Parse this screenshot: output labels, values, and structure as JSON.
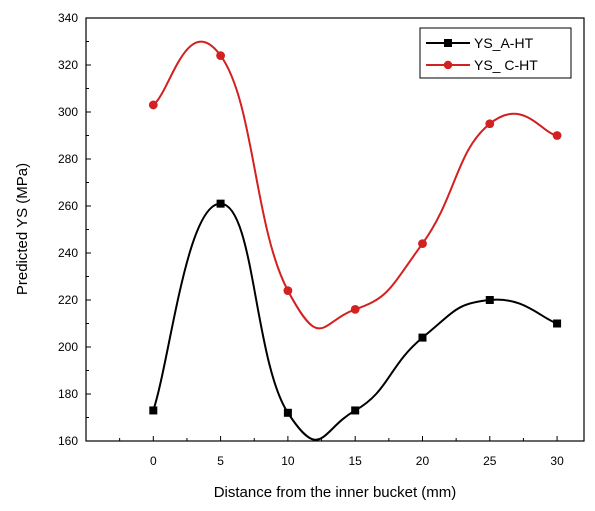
{
  "chart_data": {
    "type": "line",
    "xlabel": "Distance from the inner bucket (mm)",
    "ylabel": "Predicted YS (MPa)",
    "xlim": [
      -5,
      32
    ],
    "ylim": [
      160,
      340
    ],
    "xticks": [
      0,
      5,
      10,
      15,
      20,
      25,
      30
    ],
    "yticks": [
      160,
      180,
      200,
      220,
      240,
      260,
      280,
      300,
      320,
      340
    ],
    "x": [
      0,
      5,
      10,
      15,
      20,
      25,
      30
    ],
    "smooth": true,
    "grid": false,
    "legend_position": "top-right",
    "series": [
      {
        "name": "YS_A-HT",
        "color": "#000000",
        "marker": "square",
        "values": [
          173,
          261,
          172,
          173,
          204,
          220,
          210
        ]
      },
      {
        "name": "YS_ C-HT",
        "color": "#d32020",
        "marker": "circle",
        "values": [
          303,
          324,
          224,
          216,
          244,
          295,
          290
        ]
      }
    ]
  }
}
